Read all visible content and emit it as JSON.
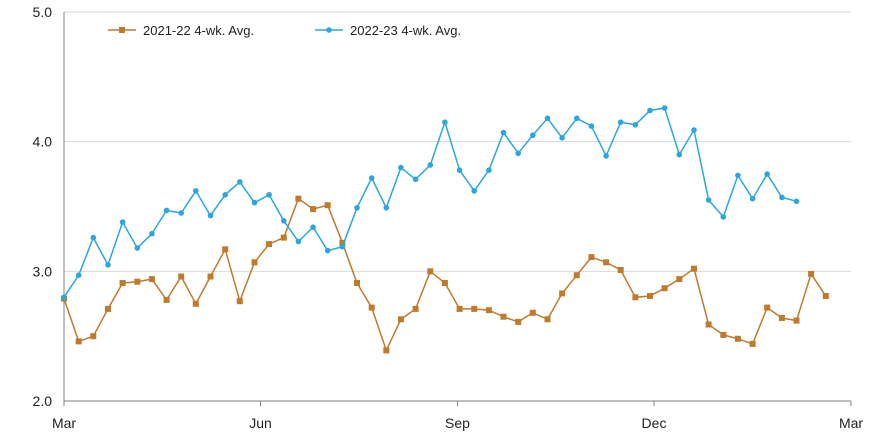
{
  "chart_data": {
    "type": "line",
    "title": "",
    "xlabel": "",
    "ylabel": "",
    "ylim": [
      2.0,
      5.0
    ],
    "y_ticks": [
      "2.0",
      "3.0",
      "4.0",
      "5.0"
    ],
    "x_ticks": [
      "Mar",
      "Jun",
      "Sep",
      "Dec",
      "Mar"
    ],
    "grid": "horizontal",
    "legend_position": "top-left",
    "series": [
      {
        "name": "2021-22  4-wk. Avg.",
        "color": "#c07a2c",
        "marker": "square",
        "values": [
          2.79,
          2.46,
          2.5,
          2.71,
          2.91,
          2.92,
          2.94,
          2.78,
          2.96,
          2.75,
          2.96,
          3.17,
          2.77,
          3.07,
          3.21,
          3.26,
          3.56,
          3.48,
          3.51,
          3.22,
          2.91,
          2.72,
          2.39,
          2.63,
          2.71,
          3.0,
          2.91,
          2.71,
          2.71,
          2.7,
          2.65,
          2.61,
          2.68,
          2.63,
          2.83,
          2.97,
          3.11,
          3.07,
          3.01,
          2.8,
          2.81,
          2.87,
          2.94,
          3.02,
          2.59,
          2.51,
          2.48,
          2.44,
          2.72,
          2.64,
          2.62,
          2.98,
          2.81
        ]
      },
      {
        "name": "2022-23  4-wk. Avg.",
        "color": "#2aa7dc",
        "marker": "circle",
        "values": [
          2.8,
          2.97,
          3.26,
          3.05,
          3.38,
          3.18,
          3.29,
          3.47,
          3.45,
          3.62,
          3.43,
          3.59,
          3.69,
          3.53,
          3.59,
          3.39,
          3.23,
          3.34,
          3.16,
          3.19,
          3.49,
          3.72,
          3.49,
          3.8,
          3.71,
          3.82,
          4.15,
          3.78,
          3.62,
          3.78,
          4.07,
          3.91,
          4.05,
          4.18,
          4.03,
          4.18,
          4.12,
          3.89,
          4.15,
          4.13,
          4.24,
          4.26,
          3.9,
          4.09,
          3.55,
          3.42,
          3.74,
          3.56,
          3.75,
          3.57,
          3.54
        ]
      }
    ]
  }
}
